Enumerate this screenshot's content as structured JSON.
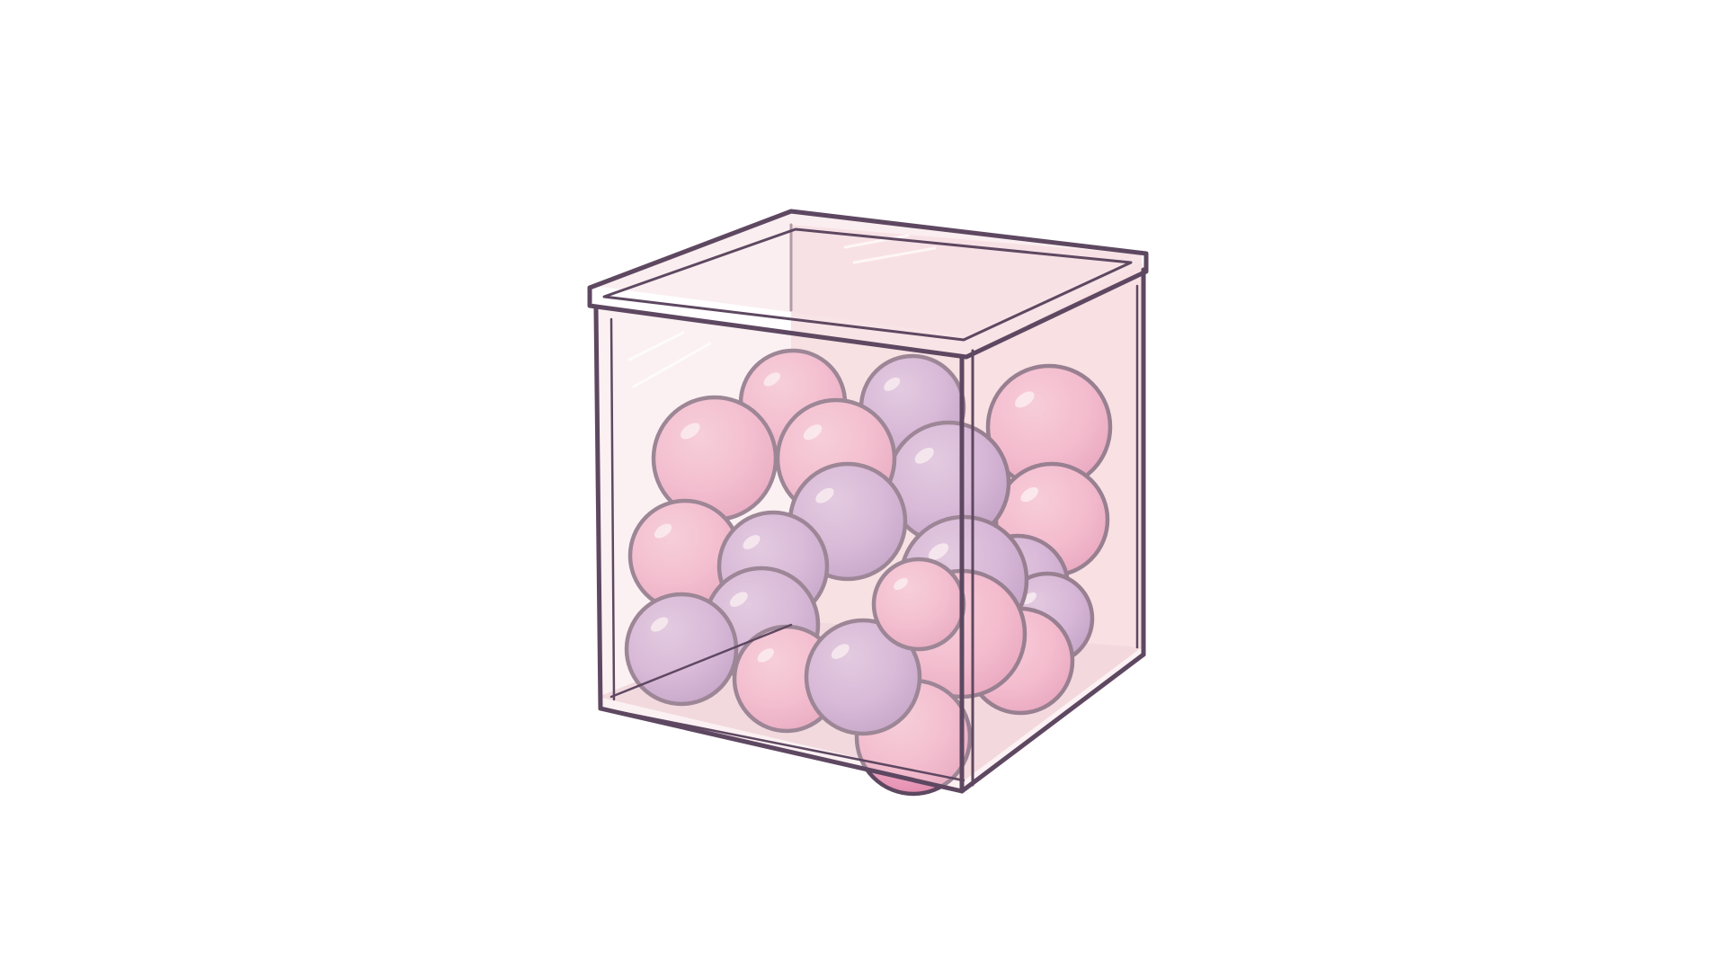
{
  "illustration": {
    "subject": "clear-cube-container-with-balls",
    "palette": {
      "background": "#ffffff",
      "outline": "#5e4861",
      "box_tint": "#f6dde0",
      "box_face_light": "#fbeaec",
      "pink_ball": "#f2a9c4",
      "pink_ball_shade": "#e48db0",
      "purple_ball": "#c4a0d2",
      "purple_ball_shade": "#ad88c0",
      "highlight": "#ffffff"
    },
    "balls": [
      {
        "color": "pink"
      },
      {
        "color": "purple"
      },
      {
        "color": "pink"
      },
      {
        "color": "pink"
      },
      {
        "color": "purple"
      },
      {
        "color": "purple"
      },
      {
        "color": "pink"
      },
      {
        "color": "purple"
      },
      {
        "color": "pink"
      },
      {
        "color": "pink"
      },
      {
        "color": "purple"
      },
      {
        "color": "purple"
      },
      {
        "color": "pink"
      },
      {
        "color": "purple"
      },
      {
        "color": "pink"
      },
      {
        "color": "purple"
      },
      {
        "color": "pink"
      },
      {
        "color": "purple"
      },
      {
        "color": "pink"
      },
      {
        "color": "purple"
      },
      {
        "color": "pink"
      }
    ]
  }
}
